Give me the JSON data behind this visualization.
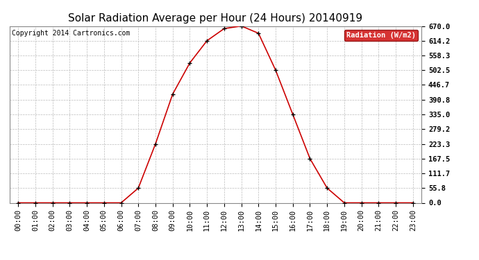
{
  "title": "Solar Radiation Average per Hour (24 Hours) 20140919",
  "copyright_text": "Copyright 2014 Cartronics.com",
  "legend_label": "Radiation (W/m2)",
  "legend_bg": "#cc0000",
  "legend_text_color": "#ffffff",
  "hours": [
    0,
    1,
    2,
    3,
    4,
    5,
    6,
    7,
    8,
    9,
    10,
    11,
    12,
    13,
    14,
    15,
    16,
    17,
    18,
    19,
    20,
    21,
    22,
    23
  ],
  "hour_labels": [
    "00:00",
    "01:00",
    "02:00",
    "03:00",
    "04:00",
    "05:00",
    "06:00",
    "07:00",
    "08:00",
    "09:00",
    "10:00",
    "11:00",
    "12:00",
    "13:00",
    "14:00",
    "15:00",
    "16:00",
    "17:00",
    "18:00",
    "19:00",
    "20:00",
    "21:00",
    "22:00",
    "23:00"
  ],
  "values": [
    0.0,
    0.0,
    0.0,
    0.0,
    0.0,
    0.0,
    0.0,
    55.8,
    223.3,
    411.7,
    530.0,
    614.2,
    660.0,
    670.0,
    642.5,
    502.5,
    335.0,
    167.5,
    55.8,
    0.0,
    0.0,
    0.0,
    0.0,
    0.0
  ],
  "line_color": "#cc0000",
  "marker_color": "#000000",
  "bg_color": "#ffffff",
  "grid_color": "#bbbbbb",
  "yticks": [
    0.0,
    55.8,
    111.7,
    167.5,
    223.3,
    279.2,
    335.0,
    390.8,
    446.7,
    502.5,
    558.3,
    614.2,
    670.0
  ],
  "ytick_labels": [
    "0.0",
    "55.8",
    "111.7",
    "167.5",
    "223.3",
    "279.2",
    "335.0",
    "390.8",
    "446.7",
    "502.5",
    "558.3",
    "614.2",
    "670.0"
  ],
  "ymax": 670.0,
  "title_fontsize": 11,
  "tick_fontsize": 7.5,
  "copyright_fontsize": 7,
  "fig_width": 6.9,
  "fig_height": 3.75,
  "dpi": 100
}
